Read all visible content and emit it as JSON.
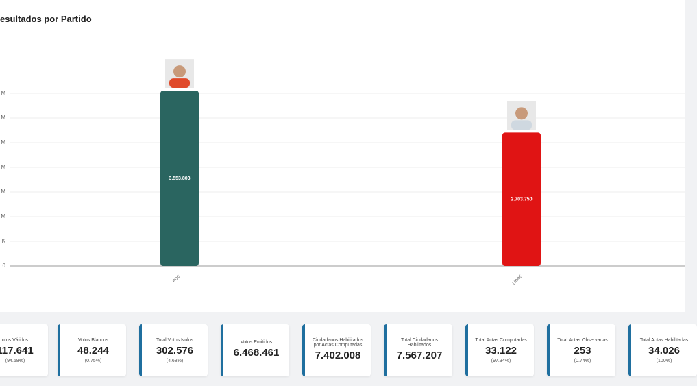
{
  "chart_data": {
    "type": "bar",
    "title": "esultados por Partido",
    "categories": [
      "PDC",
      "LIBRE"
    ],
    "values": [
      3553803,
      2703750
    ],
    "value_labels": [
      "3.553.803",
      "2.703.750"
    ],
    "colors": [
      "#2a6560",
      "#e01414"
    ],
    "ylim": [
      0,
      3500000
    ],
    "yticks": [
      {
        "value": 0,
        "label": "0"
      },
      {
        "value": 500000,
        "label": "K"
      },
      {
        "value": 1000000,
        "label": "M"
      },
      {
        "value": 1500000,
        "label": "M"
      },
      {
        "value": 2000000,
        "label": "M"
      },
      {
        "value": 2500000,
        "label": "M"
      },
      {
        "value": 3000000,
        "label": "M"
      },
      {
        "value": 3500000,
        "label": "M"
      }
    ],
    "grid": true
  },
  "cards": [
    {
      "label": "otos Válidos",
      "value": "117.641",
      "percent": "(94.58%)"
    },
    {
      "label": "Votos Blancos",
      "value": "48.244",
      "percent": "(0.75%)"
    },
    {
      "label": "Total Votos Nulos",
      "value": "302.576",
      "percent": "(4.68%)"
    },
    {
      "label": "Votos Emitidos",
      "value": "6.468.461"
    },
    {
      "label": "Ciudadanos Habilitados por Actas Computadas",
      "value": "7.402.008"
    },
    {
      "label": "Total Ciudadanos Habilitados",
      "value": "7.567.207"
    },
    {
      "label": "Total Actas Computadas",
      "value": "33.122",
      "percent": "(97.34%)"
    },
    {
      "label": "Total Actas Observadas",
      "value": "253",
      "percent": "(0.74%)"
    },
    {
      "label": "Total Actas Habilitadas",
      "value": "34.026",
      "percent": "(100%)"
    }
  ]
}
